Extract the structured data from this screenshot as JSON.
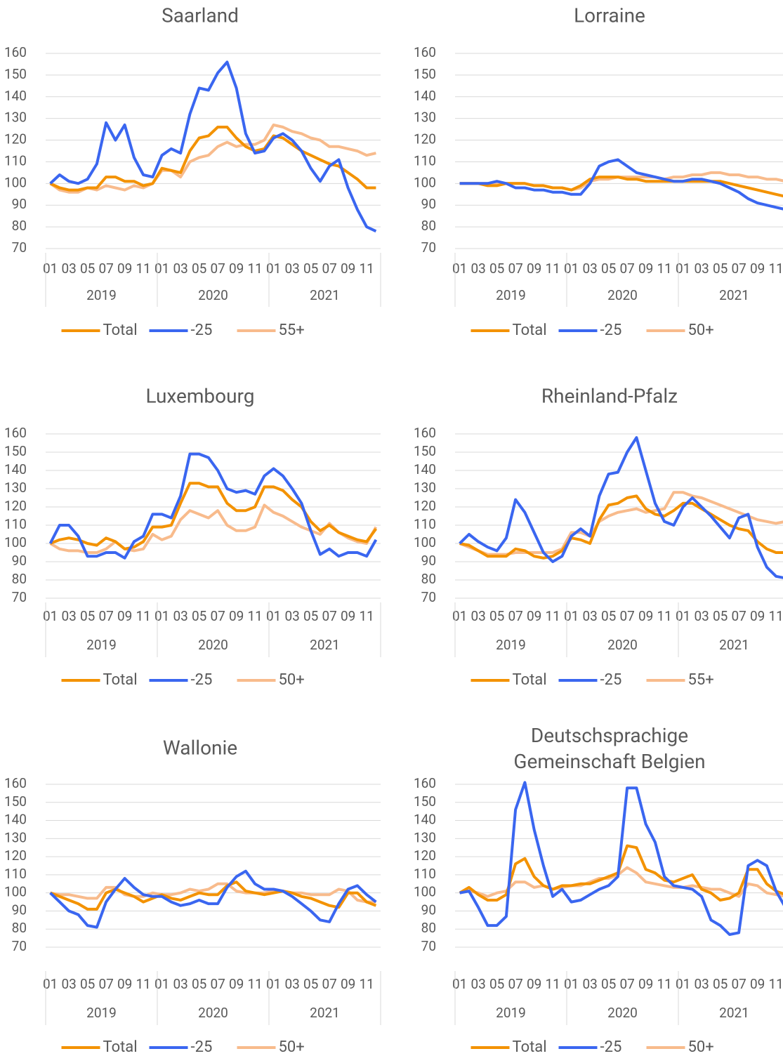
{
  "chart_data": [
    {
      "type": "line",
      "title": "Saarland",
      "categories": [
        "01",
        null,
        "03",
        null,
        "05",
        null,
        "07",
        null,
        "09",
        null,
        "11",
        null,
        "01",
        null,
        "03",
        null,
        "05",
        null,
        "07",
        null,
        "09",
        null,
        "11",
        null,
        "01",
        null,
        "03",
        null,
        "05",
        null,
        "07",
        null,
        "09",
        null,
        "11",
        null
      ],
      "x_groups": [
        "2019",
        "2020",
        "2021"
      ],
      "ylim": [
        70,
        160
      ],
      "yticks": [
        70,
        80,
        90,
        100,
        110,
        120,
        130,
        140,
        150,
        160
      ],
      "grid": true,
      "series": [
        {
          "name": "Total",
          "color": "#f39200",
          "values": [
            100,
            98,
            97,
            97,
            98,
            98,
            103,
            103,
            101,
            101,
            99,
            100,
            107,
            106,
            105,
            115,
            121,
            122,
            126,
            126,
            121,
            117,
            115,
            116,
            122,
            121,
            118,
            115,
            113,
            111,
            109,
            108,
            105,
            102,
            98,
            98
          ]
        },
        {
          "name": "-25",
          "color": "#3a66f0",
          "values": [
            100,
            104,
            101,
            100,
            102,
            109,
            128,
            120,
            127,
            112,
            104,
            103,
            113,
            116,
            114,
            132,
            144,
            143,
            151,
            156,
            144,
            123,
            114,
            115,
            121,
            123,
            120,
            115,
            107,
            101,
            108,
            111,
            98,
            88,
            80,
            78
          ]
        },
        {
          "name": "55+",
          "color": "#f8bb8c",
          "values": [
            100,
            97,
            96,
            96,
            98,
            97,
            99,
            98,
            97,
            99,
            98,
            100,
            106,
            106,
            103,
            110,
            112,
            113,
            117,
            119,
            117,
            118,
            118,
            120,
            127,
            126,
            124,
            123,
            121,
            120,
            117,
            117,
            116,
            115,
            113,
            114
          ]
        }
      ]
    },
    {
      "type": "line",
      "title": "Lorraine",
      "categories": [
        "01",
        null,
        "03",
        null,
        "05",
        null,
        "07",
        null,
        "09",
        null,
        "11",
        null,
        "01",
        null,
        "03",
        null,
        "05",
        null,
        "07",
        null,
        "09",
        null,
        "11",
        null,
        "01",
        null,
        "03",
        null,
        "05",
        null,
        "07",
        null,
        "09",
        null,
        "11",
        null
      ],
      "x_groups": [
        "2019",
        "2020",
        "2021"
      ],
      "ylim": [
        70,
        160
      ],
      "yticks": [
        70,
        80,
        90,
        100,
        110,
        120,
        130,
        140,
        150,
        160
      ],
      "grid": true,
      "series": [
        {
          "name": "Total",
          "color": "#f39200",
          "values": [
            100,
            100,
            100,
            99,
            99,
            100,
            100,
            100,
            99,
            99,
            98,
            98,
            97,
            99,
            102,
            103,
            103,
            103,
            102,
            102,
            101,
            101,
            101,
            101,
            101,
            101,
            101,
            101,
            101,
            100,
            99,
            98,
            97,
            96,
            95,
            94
          ]
        },
        {
          "name": "-25",
          "color": "#3a66f0",
          "values": [
            100,
            100,
            100,
            100,
            101,
            100,
            98,
            98,
            97,
            97,
            96,
            96,
            95,
            95,
            100,
            108,
            110,
            111,
            108,
            105,
            104,
            103,
            102,
            101,
            101,
            102,
            102,
            101,
            100,
            98,
            96,
            93,
            91,
            90,
            89,
            88
          ]
        },
        {
          "name": "50+",
          "color": "#f8bb8c",
          "values": [
            100,
            100,
            100,
            100,
            100,
            100,
            100,
            100,
            99,
            99,
            98,
            98,
            97,
            98,
            101,
            102,
            102,
            103,
            103,
            103,
            103,
            103,
            102,
            103,
            103,
            104,
            104,
            105,
            105,
            104,
            104,
            103,
            103,
            102,
            102,
            101
          ]
        }
      ]
    },
    {
      "type": "line",
      "title": "Luxembourg",
      "categories": [
        "01",
        null,
        "03",
        null,
        "05",
        null,
        "07",
        null,
        "09",
        null,
        "11",
        null,
        "01",
        null,
        "03",
        null,
        "05",
        null,
        "07",
        null,
        "09",
        null,
        "11",
        null,
        "01",
        null,
        "03",
        null,
        "05",
        null,
        "07",
        null,
        "09",
        null,
        "11",
        null
      ],
      "x_groups": [
        "2019",
        "2020",
        "2021"
      ],
      "ylim": [
        70,
        160
      ],
      "yticks": [
        70,
        80,
        90,
        100,
        110,
        120,
        130,
        140,
        150,
        160
      ],
      "grid": true,
      "series": [
        {
          "name": "Total",
          "color": "#f39200",
          "values": [
            100,
            102,
            103,
            102,
            100,
            99,
            103,
            101,
            97,
            98,
            101,
            109,
            109,
            110,
            122,
            133,
            133,
            131,
            131,
            122,
            118,
            118,
            120,
            131,
            131,
            129,
            124,
            120,
            112,
            107,
            110,
            106,
            104,
            102,
            101,
            108
          ]
        },
        {
          "name": "-25",
          "color": "#3a66f0",
          "values": [
            100,
            110,
            110,
            104,
            93,
            93,
            95,
            95,
            92,
            101,
            104,
            116,
            116,
            114,
            126,
            149,
            149,
            147,
            140,
            130,
            128,
            129,
            127,
            137,
            141,
            137,
            130,
            122,
            107,
            94,
            97,
            93,
            95,
            95,
            93,
            102
          ]
        },
        {
          "name": "50+",
          "color": "#f8bb8c",
          "values": [
            100,
            97,
            96,
            96,
            95,
            95,
            97,
            101,
            97,
            96,
            97,
            105,
            102,
            104,
            113,
            118,
            116,
            114,
            118,
            110,
            107,
            107,
            109,
            121,
            117,
            115,
            112,
            109,
            107,
            105,
            111,
            106,
            103,
            101,
            100,
            109
          ]
        }
      ]
    },
    {
      "type": "line",
      "title": "Rheinland-Pfalz",
      "categories": [
        "01",
        null,
        "03",
        null,
        "05",
        null,
        "07",
        null,
        "09",
        null,
        "11",
        null,
        "01",
        null,
        "03",
        null,
        "05",
        null,
        "07",
        null,
        "09",
        null,
        "11",
        null,
        "01",
        null,
        "03",
        null,
        "05",
        null,
        "07",
        null,
        "09",
        null,
        "11",
        null
      ],
      "x_groups": [
        "2019",
        "2020",
        "2021"
      ],
      "ylim": [
        70,
        160
      ],
      "yticks": [
        70,
        80,
        90,
        100,
        110,
        120,
        130,
        140,
        150,
        160
      ],
      "grid": true,
      "series": [
        {
          "name": "Total",
          "color": "#f39200",
          "values": [
            100,
            99,
            96,
            93,
            93,
            93,
            97,
            96,
            93,
            92,
            93,
            96,
            103,
            102,
            100,
            113,
            121,
            122,
            125,
            126,
            119,
            116,
            115,
            118,
            122,
            122,
            119,
            116,
            113,
            110,
            108,
            107,
            101,
            97,
            95,
            95
          ]
        },
        {
          "name": "-25",
          "color": "#3a66f0",
          "values": [
            100,
            105,
            101,
            98,
            96,
            103,
            124,
            117,
            106,
            95,
            90,
            93,
            104,
            108,
            104,
            126,
            138,
            139,
            150,
            158,
            140,
            122,
            112,
            110,
            120,
            125,
            120,
            115,
            109,
            103,
            114,
            116,
            98,
            87,
            82,
            81
          ]
        },
        {
          "name": "55+",
          "color": "#f8bb8c",
          "values": [
            100,
            98,
            96,
            94,
            94,
            94,
            95,
            95,
            95,
            95,
            95,
            97,
            106,
            106,
            104,
            112,
            115,
            117,
            118,
            119,
            117,
            118,
            119,
            128,
            128,
            126,
            125,
            123,
            121,
            119,
            117,
            115,
            113,
            112,
            111,
            112
          ]
        }
      ]
    },
    {
      "type": "line",
      "title": "Wallonie",
      "categories": [
        "01",
        null,
        "03",
        null,
        "05",
        null,
        "07",
        null,
        "09",
        null,
        "11",
        null,
        "01",
        null,
        "03",
        null,
        "05",
        null,
        "07",
        null,
        "09",
        null,
        "11",
        null,
        "01",
        null,
        "03",
        null,
        "05",
        null,
        "07",
        null,
        "09",
        null,
        "11",
        null
      ],
      "x_groups": [
        "2019",
        "2020",
        "2021"
      ],
      "ylim": [
        70,
        160
      ],
      "yticks": [
        70,
        80,
        90,
        100,
        110,
        120,
        130,
        140,
        150,
        160
      ],
      "grid": true,
      "series": [
        {
          "name": "Total",
          "color": "#f39200",
          "values": [
            100,
            98,
            96,
            94,
            91,
            91,
            100,
            102,
            100,
            98,
            95,
            97,
            99,
            97,
            96,
            98,
            100,
            99,
            99,
            104,
            106,
            101,
            100,
            99,
            100,
            101,
            100,
            98,
            97,
            95,
            93,
            92,
            100,
            100,
            95,
            93
          ]
        },
        {
          "name": "-25",
          "color": "#3a66f0",
          "values": [
            100,
            95,
            90,
            88,
            82,
            81,
            95,
            102,
            108,
            103,
            99,
            98,
            98,
            95,
            93,
            94,
            96,
            94,
            94,
            103,
            109,
            112,
            105,
            102,
            102,
            101,
            98,
            94,
            90,
            85,
            84,
            94,
            102,
            104,
            99,
            95
          ]
        },
        {
          "name": "50+",
          "color": "#f8bb8c",
          "values": [
            100,
            99,
            99,
            98,
            97,
            97,
            103,
            103,
            99,
            98,
            98,
            100,
            99,
            99,
            100,
            102,
            101,
            102,
            105,
            105,
            101,
            100,
            100,
            100,
            101,
            101,
            100,
            100,
            99,
            99,
            99,
            102,
            101,
            96,
            95,
            95
          ]
        }
      ]
    },
    {
      "type": "line",
      "title": "Deutschsprachige Gemeinschaft Belgien",
      "categories": [
        "01",
        null,
        "03",
        null,
        "05",
        null,
        "07",
        null,
        "09",
        null,
        "11",
        null,
        "01",
        null,
        "03",
        null,
        "05",
        null,
        "07",
        null,
        "09",
        null,
        "11",
        null,
        "01",
        null,
        "03",
        null,
        "05",
        null,
        "07",
        null,
        "09",
        null,
        "11",
        null
      ],
      "x_groups": [
        "2019",
        "2020",
        "2021"
      ],
      "ylim": [
        70,
        160
      ],
      "yticks": [
        70,
        80,
        90,
        100,
        110,
        120,
        130,
        140,
        150,
        160
      ],
      "grid": true,
      "series": [
        {
          "name": "Total",
          "color": "#f39200",
          "values": [
            100,
            103,
            99,
            96,
            96,
            99,
            116,
            119,
            109,
            104,
            102,
            104,
            104,
            105,
            105,
            107,
            109,
            111,
            126,
            125,
            113,
            111,
            107,
            106,
            108,
            110,
            102,
            100,
            96,
            97,
            100,
            113,
            113,
            105,
            101,
            99
          ]
        },
        {
          "name": "-25",
          "color": "#3a66f0",
          "values": [
            100,
            101,
            92,
            82,
            82,
            87,
            146,
            161,
            135,
            115,
            98,
            102,
            95,
            96,
            99,
            102,
            104,
            109,
            158,
            158,
            138,
            128,
            109,
            104,
            103,
            102,
            98,
            85,
            82,
            77,
            78,
            115,
            118,
            115,
            101,
            92
          ]
        },
        {
          "name": "50+",
          "color": "#f8bb8c",
          "values": [
            100,
            101,
            100,
            98,
            100,
            101,
            106,
            106,
            103,
            104,
            102,
            103,
            104,
            104,
            106,
            108,
            108,
            110,
            114,
            111,
            106,
            105,
            104,
            103,
            103,
            104,
            103,
            102,
            102,
            100,
            98,
            105,
            104,
            100,
            99,
            98
          ]
        }
      ]
    }
  ]
}
